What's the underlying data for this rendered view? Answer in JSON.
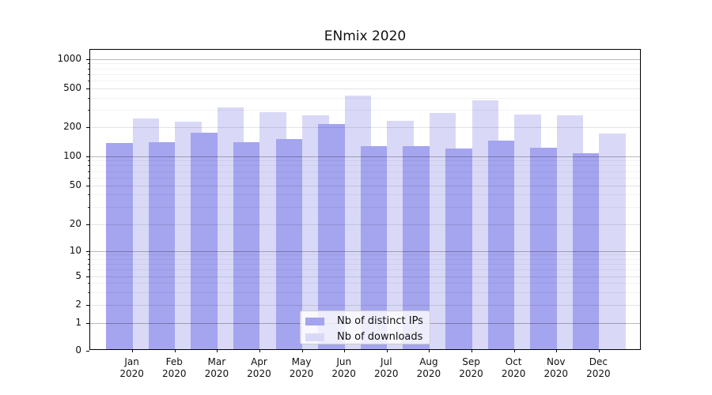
{
  "title": "ENmix 2020",
  "chart_data": {
    "type": "bar",
    "title": "ENmix 2020",
    "categories": [
      "Jan",
      "Feb",
      "Mar",
      "Apr",
      "May",
      "Jun",
      "Jul",
      "Aug",
      "Sep",
      "Oct",
      "Nov",
      "Dec"
    ],
    "year": "2020",
    "series": [
      {
        "name": "Nb of distinct IPs",
        "color": "#a4a4ef",
        "values": [
          137,
          141,
          178,
          141,
          153,
          216,
          127,
          128,
          122,
          146,
          123,
          107
        ]
      },
      {
        "name": "Nb of downloads",
        "color": "#d9d9f7",
        "values": [
          247,
          230,
          320,
          289,
          265,
          428,
          234,
          284,
          378,
          272,
          267,
          172
        ]
      }
    ],
    "yscale": "symlog",
    "ylim": [
      0,
      1250
    ],
    "ytick_labels": [
      "0",
      "1",
      "2",
      "5",
      "10",
      "20",
      "50",
      "100",
      "200",
      "500",
      "1000"
    ],
    "yticks": [
      0,
      1,
      2,
      5,
      10,
      20,
      50,
      100,
      200,
      500,
      1000
    ],
    "grid": true,
    "legend_position": "lower-center",
    "xlabel": "",
    "ylabel": ""
  }
}
